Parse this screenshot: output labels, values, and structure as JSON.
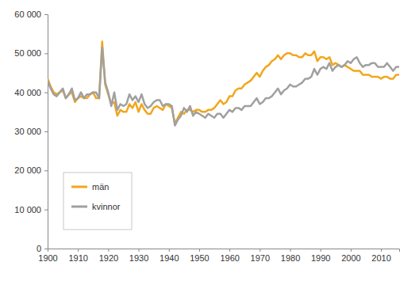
{
  "chart_data": {
    "type": "line",
    "x": [
      1900,
      1901,
      1902,
      1903,
      1904,
      1905,
      1906,
      1907,
      1908,
      1909,
      1910,
      1911,
      1912,
      1913,
      1914,
      1915,
      1916,
      1917,
      1918,
      1919,
      1920,
      1921,
      1922,
      1923,
      1924,
      1925,
      1926,
      1927,
      1928,
      1929,
      1930,
      1931,
      1932,
      1933,
      1934,
      1935,
      1936,
      1937,
      1938,
      1939,
      1940,
      1941,
      1942,
      1943,
      1944,
      1945,
      1946,
      1947,
      1948,
      1949,
      1950,
      1951,
      1952,
      1953,
      1954,
      1955,
      1956,
      1957,
      1958,
      1959,
      1960,
      1961,
      1962,
      1963,
      1964,
      1965,
      1966,
      1967,
      1968,
      1969,
      1970,
      1971,
      1972,
      1973,
      1974,
      1975,
      1976,
      1977,
      1978,
      1979,
      1980,
      1981,
      1982,
      1983,
      1984,
      1985,
      1986,
      1987,
      1988,
      1989,
      1990,
      1991,
      1992,
      1993,
      1994,
      1995,
      1996,
      1997,
      1998,
      1999,
      2000,
      2001,
      2002,
      2003,
      2004,
      2005,
      2006,
      2007,
      2008,
      2009,
      2010,
      2011,
      2012,
      2013,
      2014,
      2015,
      2016
    ],
    "series": [
      {
        "name": "män",
        "color": "#f2a61c",
        "values": [
          43500,
          41500,
          40000,
          39500,
          40000,
          40500,
          38500,
          39500,
          40000,
          37500,
          38500,
          39000,
          38500,
          38500,
          39500,
          40000,
          38500,
          38500,
          53000,
          42000,
          39500,
          37000,
          37500,
          34000,
          35500,
          35000,
          35000,
          37000,
          36000,
          37500,
          35000,
          37000,
          35500,
          34500,
          34500,
          36000,
          36500,
          36000,
          35500,
          37000,
          36500,
          36000,
          32000,
          33500,
          35000,
          34500,
          35500,
          35500,
          35000,
          35500,
          35500,
          35000,
          35000,
          35500,
          35500,
          36000,
          37000,
          38000,
          37000,
          37500,
          39000,
          39000,
          40500,
          41000,
          41000,
          42000,
          42500,
          43000,
          44000,
          45000,
          44000,
          45500,
          46500,
          47000,
          48000,
          48500,
          49500,
          48500,
          49500,
          50000,
          50000,
          49500,
          49500,
          49000,
          49000,
          50000,
          49500,
          49500,
          50500,
          48000,
          49000,
          49000,
          48500,
          49000,
          47000,
          47500,
          47000,
          46500,
          47000,
          46500,
          46000,
          45500,
          45500,
          45500,
          44500,
          44500,
          44500,
          44000,
          44000,
          44000,
          43500,
          44000,
          44000,
          43500,
          43500,
          44500,
          44500
        ]
      },
      {
        "name": "kvinnor",
        "color": "#a0a0a0",
        "values": [
          43000,
          41000,
          39500,
          39000,
          40000,
          41000,
          38500,
          39500,
          41000,
          38000,
          38500,
          40000,
          38500,
          39500,
          39500,
          40000,
          40000,
          38500,
          51500,
          42500,
          40000,
          36500,
          40000,
          35500,
          37000,
          36500,
          37000,
          39500,
          38000,
          39000,
          37500,
          39500,
          37000,
          36000,
          36500,
          37500,
          38000,
          38000,
          36500,
          37000,
          37000,
          36500,
          31500,
          33000,
          34000,
          36000,
          35000,
          36500,
          34000,
          35000,
          34500,
          34000,
          33500,
          34500,
          34000,
          33500,
          34500,
          34500,
          33500,
          34500,
          35500,
          35000,
          36000,
          36000,
          35500,
          36500,
          36500,
          36500,
          37500,
          38500,
          37000,
          37500,
          38500,
          38500,
          39000,
          40000,
          41000,
          39500,
          40500,
          41000,
          42000,
          41500,
          41500,
          42000,
          42500,
          43500,
          43500,
          44000,
          46000,
          44500,
          46000,
          46500,
          46000,
          47500,
          45500,
          46500,
          47000,
          46500,
          47000,
          48000,
          47500,
          48500,
          49000,
          47500,
          46500,
          47000,
          47000,
          47500,
          47500,
          46500,
          46500,
          46500,
          47500,
          46500,
          45500,
          46500,
          46500
        ]
      }
    ],
    "xlim": [
      1900,
      2016
    ],
    "xticks": [
      1900,
      1910,
      1920,
      1930,
      1940,
      1950,
      1960,
      1970,
      1980,
      1990,
      2000,
      2010
    ],
    "ylim": [
      0,
      60000
    ],
    "yticks": [
      0,
      {
        "value": 10000,
        "label": "10 000"
      },
      {
        "value": 20000,
        "label": "20 000"
      },
      {
        "value": 30000,
        "label": "30 000"
      },
      {
        "value": 40000,
        "label": "40 000"
      },
      {
        "value": 50000,
        "label": "50 000"
      },
      {
        "value": 60000,
        "label": "60 000"
      }
    ],
    "grid": false,
    "legend": "lower left"
  }
}
